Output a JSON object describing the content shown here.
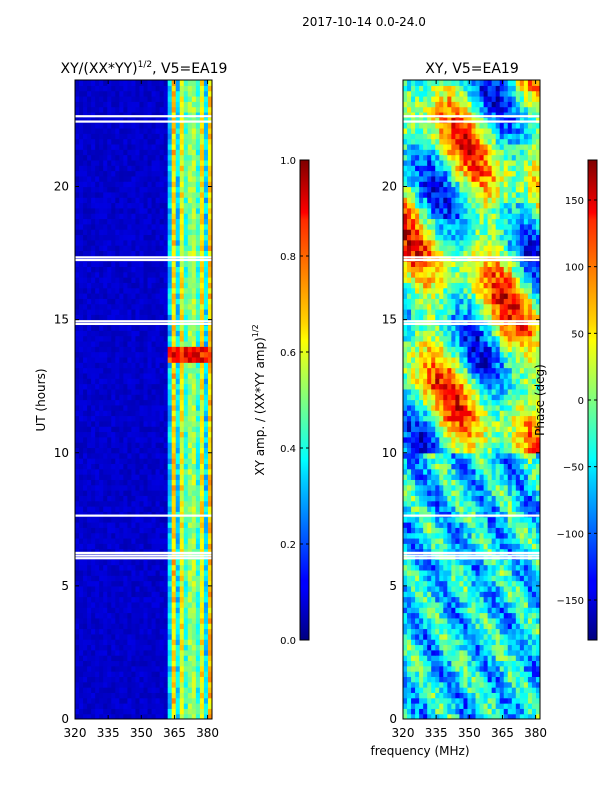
{
  "suptitle": "2017-10-14 0.0-24.0",
  "shared_xlabel": "frequency (MHz)",
  "chart_data": [
    {
      "type": "heatmap",
      "title": "XY/(XX*YY)",
      "title_exponent": "1/2",
      "title_suffix": ", V5=EA19",
      "xlabel": "",
      "ylabel": "UT (hours)",
      "xlim": [
        320,
        382
      ],
      "ylim": [
        0,
        24
      ],
      "xticks": [
        320,
        335,
        350,
        365,
        380
      ],
      "yticks": [
        0,
        5,
        10,
        15,
        20
      ],
      "colorbar": {
        "label": "XY amp. / (XX*YY amp)",
        "label_exponent": "1/2",
        "range": [
          0.0,
          1.0
        ],
        "ticks": [
          0.0,
          0.2,
          0.4,
          0.6,
          0.8,
          1.0
        ],
        "tick_labels": [
          "0.0",
          "0.2",
          "0.4",
          "0.6",
          "0.8",
          "1.0"
        ],
        "colormap": "jet"
      },
      "data_description": "Mostly low amplitude (~0.05) below 362 MHz; elevated amplitude 0.3-0.7 in channels 362-382 MHz; bright band near 13.5-14 UT",
      "gap_hours": [
        22.4,
        22.6,
        17.2,
        17.3,
        14.8,
        14.9,
        6.0,
        6.1,
        6.2,
        7.6
      ]
    },
    {
      "type": "heatmap",
      "title": "XY, V5=EA19",
      "xlabel": "",
      "ylabel": "",
      "xlim": [
        320,
        382
      ],
      "ylim": [
        0,
        24
      ],
      "xticks": [
        320,
        335,
        350,
        365,
        380
      ],
      "yticks": [
        0,
        5,
        10,
        15,
        20
      ],
      "colorbar": {
        "label": "Phase (deg)",
        "range": [
          -180,
          180
        ],
        "ticks": [
          -150,
          -100,
          -50,
          0,
          50,
          100,
          150
        ],
        "tick_labels": [
          "−150",
          "−100",
          "−50",
          "0",
          "50",
          "100",
          "150"
        ],
        "colormap": "jet"
      },
      "data_description": "Phase wraps across full range; large-scale structures above 10 UT, mostly near -50 deg below 10 UT",
      "gap_hours": [
        22.4,
        22.6,
        17.2,
        17.3,
        14.8,
        14.9,
        6.0,
        6.1,
        6.2,
        7.6
      ]
    }
  ]
}
